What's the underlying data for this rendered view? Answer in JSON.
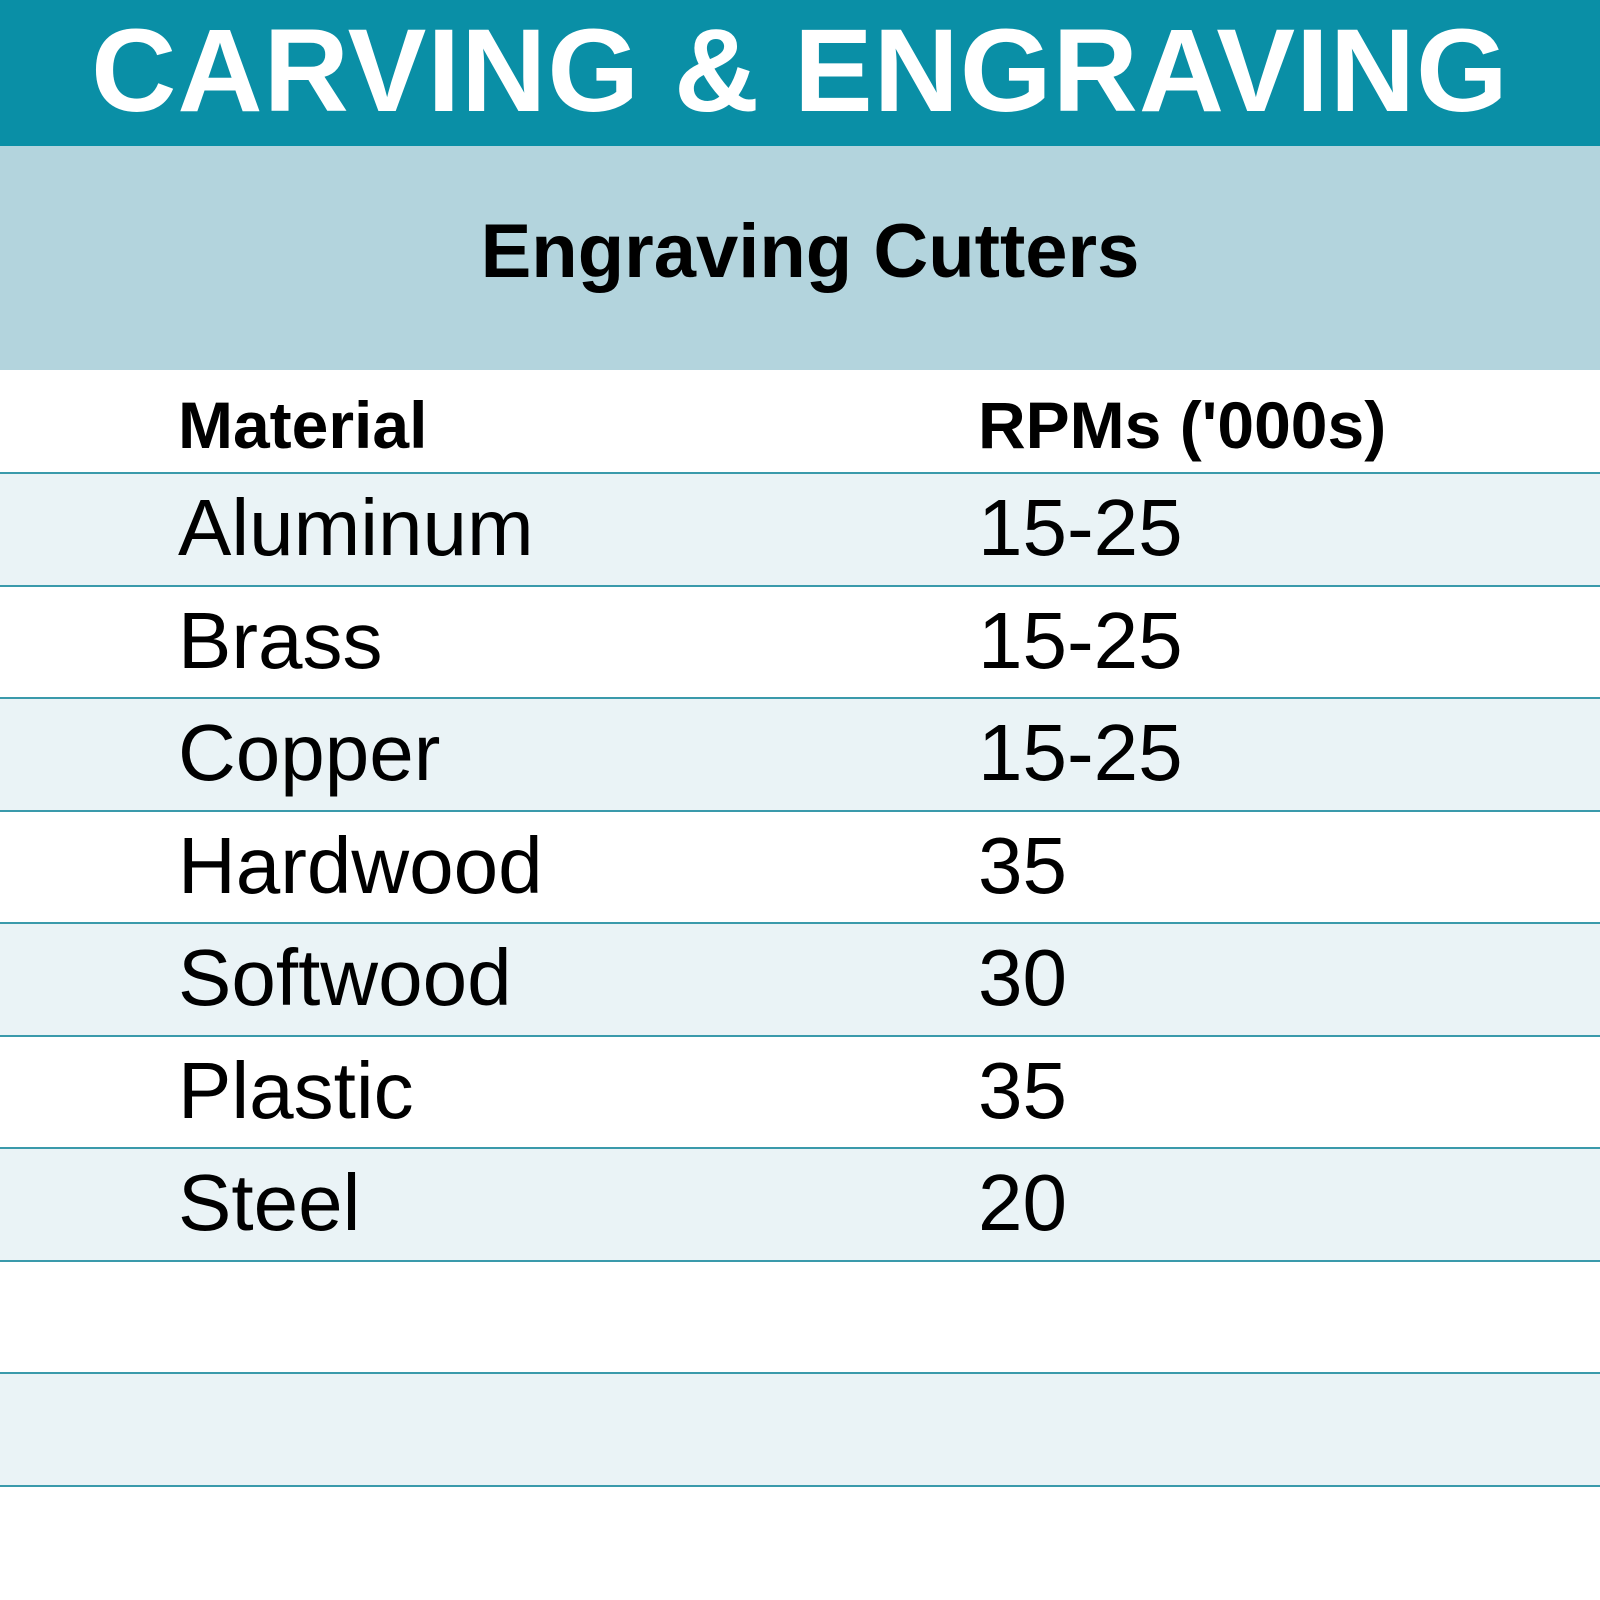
{
  "title": "CARVING & ENGRAVING",
  "subtitle": "Engraving Cutters",
  "table": {
    "headers": {
      "material": "Material",
      "rpm": "RPMs ('000s)"
    },
    "rows": [
      {
        "material": "Aluminum",
        "rpm": "15-25"
      },
      {
        "material": "Brass",
        "rpm": "15-25"
      },
      {
        "material": "Copper",
        "rpm": "15-25"
      },
      {
        "material": "Hardwood",
        "rpm": "35"
      },
      {
        "material": "Softwood",
        "rpm": "30"
      },
      {
        "material": "Plastic",
        "rpm": "35"
      },
      {
        "material": "Steel",
        "rpm": "20"
      }
    ]
  },
  "colors": {
    "title_bar": "#0a8fa6",
    "subtitle_bar": "#b3d4dd",
    "row_shade": "#eaf3f6",
    "rule": "#3a9aab"
  }
}
